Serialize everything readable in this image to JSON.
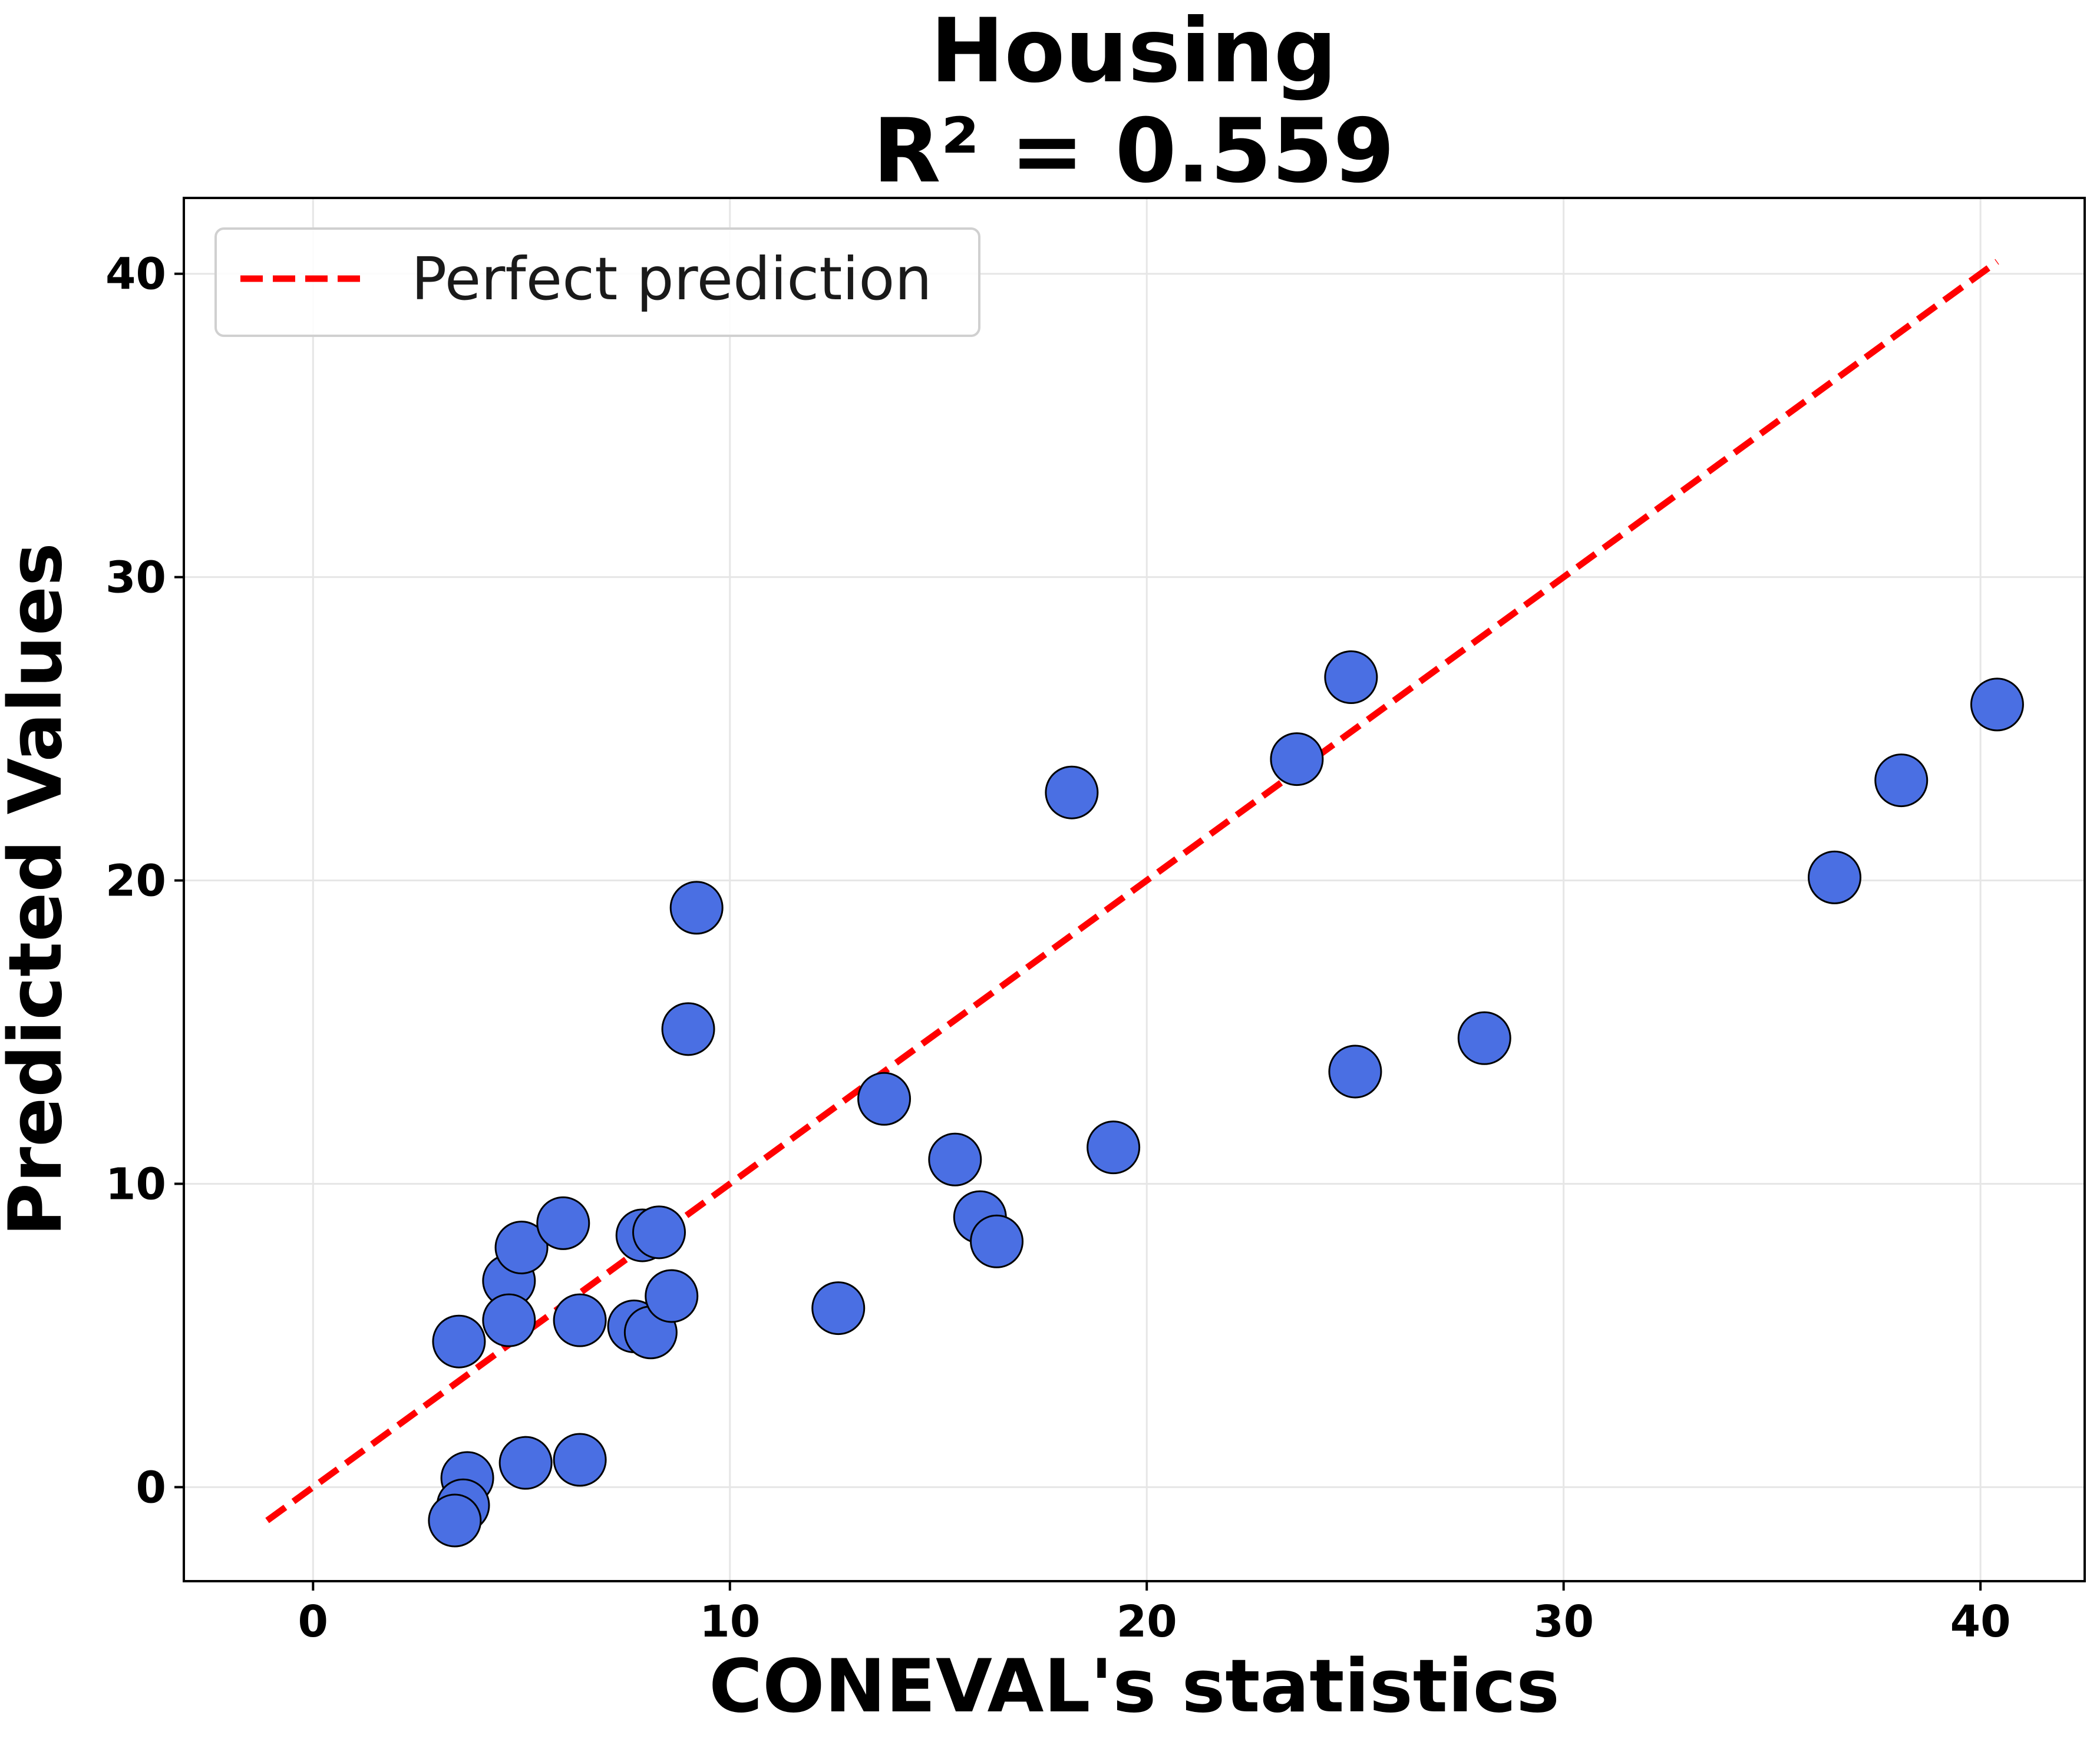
{
  "chart_data": {
    "type": "scatter",
    "title": "Housing",
    "subtitle": "R² = 0.559",
    "xlabel": "CONEVAL's statistics",
    "ylabel": "Predicted Values",
    "xlim": [
      -3.1,
      42.5
    ],
    "ylim": [
      -3.1,
      42.5
    ],
    "xticks": [
      0,
      10,
      20,
      30,
      40
    ],
    "yticks": [
      0,
      10,
      20,
      30,
      40
    ],
    "grid": true,
    "legend_position": "top-left",
    "series": [
      {
        "kind": "scatter",
        "color": "#4a6fe3",
        "points": [
          {
            "x": 3.5,
            "y": 4.8
          },
          {
            "x": 3.7,
            "y": 0.3
          },
          {
            "x": 3.6,
            "y": -0.6
          },
          {
            "x": 3.4,
            "y": -1.1
          },
          {
            "x": 4.7,
            "y": 6.8
          },
          {
            "x": 4.7,
            "y": 5.5
          },
          {
            "x": 5.0,
            "y": 7.9
          },
          {
            "x": 5.1,
            "y": 0.8
          },
          {
            "x": 6.0,
            "y": 8.7
          },
          {
            "x": 6.4,
            "y": 5.5
          },
          {
            "x": 6.4,
            "y": 0.9
          },
          {
            "x": 7.7,
            "y": 5.3
          },
          {
            "x": 7.9,
            "y": 8.3
          },
          {
            "x": 8.1,
            "y": 5.1
          },
          {
            "x": 8.3,
            "y": 8.4
          },
          {
            "x": 8.6,
            "y": 6.3
          },
          {
            "x": 9.0,
            "y": 15.1
          },
          {
            "x": 9.2,
            "y": 19.1
          },
          {
            "x": 12.6,
            "y": 5.9
          },
          {
            "x": 13.7,
            "y": 12.8
          },
          {
            "x": 15.4,
            "y": 10.8
          },
          {
            "x": 16.0,
            "y": 8.9
          },
          {
            "x": 16.4,
            "y": 8.1
          },
          {
            "x": 18.2,
            "y": 22.9
          },
          {
            "x": 19.2,
            "y": 11.2
          },
          {
            "x": 23.6,
            "y": 24.0
          },
          {
            "x": 24.9,
            "y": 26.7
          },
          {
            "x": 25.0,
            "y": 13.7
          },
          {
            "x": 28.1,
            "y": 14.8
          },
          {
            "x": 36.5,
            "y": 20.1
          },
          {
            "x": 38.1,
            "y": 23.3
          },
          {
            "x": 40.4,
            "y": 25.8
          }
        ]
      },
      {
        "kind": "line",
        "name": "Perfect prediction",
        "color": "#ff0000",
        "dash": "dashed",
        "points": [
          {
            "x": -1.1,
            "y": -1.1
          },
          {
            "x": 40.4,
            "y": 40.4
          }
        ]
      }
    ]
  }
}
